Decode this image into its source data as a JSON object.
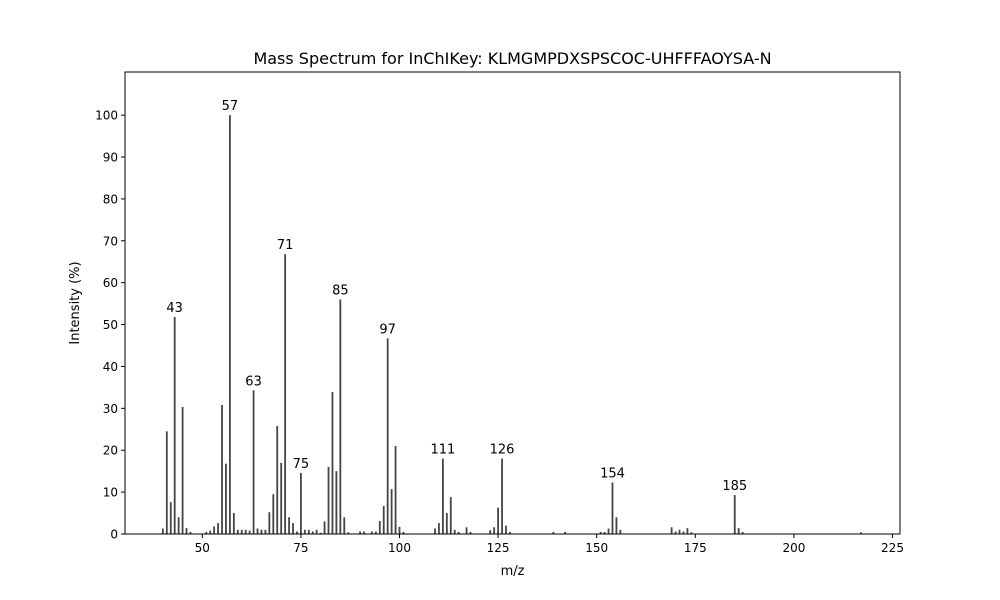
{
  "chart_data": {
    "type": "bar",
    "title": "Mass Spectrum for InChIKey: KLMGMPDXSPSCOC-UHFFFAOYSA-N",
    "xlabel": "m/z",
    "ylabel": "Intensity (%)",
    "xlim": [
      30.4,
      226.9
    ],
    "ylim": [
      0,
      110.3
    ],
    "xticks": [
      50,
      75,
      100,
      125,
      150,
      175,
      200,
      225
    ],
    "yticks": [
      0,
      10,
      20,
      30,
      40,
      50,
      60,
      70,
      80,
      90,
      100
    ],
    "grid": false,
    "bar_color": "#444444",
    "peaks": [
      [
        40,
        1.3
      ],
      [
        41,
        24.5
      ],
      [
        42,
        7.6
      ],
      [
        43,
        51.8
      ],
      [
        44,
        4
      ],
      [
        45,
        30.3
      ],
      [
        46,
        1.4
      ],
      [
        47,
        0.5
      ],
      [
        51,
        0.5
      ],
      [
        52,
        0.8
      ],
      [
        53,
        1.8
      ],
      [
        54,
        2.6
      ],
      [
        55,
        30.8
      ],
      [
        56,
        16.8
      ],
      [
        57,
        100
      ],
      [
        58,
        5
      ],
      [
        59,
        1
      ],
      [
        60,
        1
      ],
      [
        61,
        1
      ],
      [
        62,
        0.8
      ],
      [
        63,
        34.3
      ],
      [
        64,
        1.3
      ],
      [
        65,
        1
      ],
      [
        66,
        1
      ],
      [
        67,
        5.2
      ],
      [
        68,
        9.5
      ],
      [
        69,
        25.8
      ],
      [
        70,
        17
      ],
      [
        71,
        66.8
      ],
      [
        72,
        4
      ],
      [
        73,
        2.6
      ],
      [
        74,
        0.6
      ],
      [
        75,
        14.6
      ],
      [
        76,
        1
      ],
      [
        77,
        1
      ],
      [
        78,
        0.6
      ],
      [
        79,
        1
      ],
      [
        80,
        0.3
      ],
      [
        81,
        3
      ],
      [
        82,
        16
      ],
      [
        83,
        33.9
      ],
      [
        84,
        15
      ],
      [
        85,
        56
      ],
      [
        86,
        4
      ],
      [
        87,
        0.4
      ],
      [
        90,
        0.6
      ],
      [
        91,
        0.6
      ],
      [
        93,
        0.6
      ],
      [
        94,
        0.6
      ],
      [
        95,
        3.1
      ],
      [
        96,
        6.7
      ],
      [
        97,
        46.7
      ],
      [
        98,
        10.7
      ],
      [
        99,
        21
      ],
      [
        100,
        1.7
      ],
      [
        101,
        0.5
      ],
      [
        109,
        1.3
      ],
      [
        110,
        2.6
      ],
      [
        111,
        18
      ],
      [
        112,
        5
      ],
      [
        113,
        8.8
      ],
      [
        114,
        1
      ],
      [
        115,
        0.5
      ],
      [
        117,
        1.6
      ],
      [
        118,
        0.5
      ],
      [
        123,
        0.9
      ],
      [
        124,
        1.6
      ],
      [
        125,
        6.3
      ],
      [
        126,
        18
      ],
      [
        127,
        2
      ],
      [
        128,
        0.5
      ],
      [
        139,
        0.5
      ],
      [
        142,
        0.5
      ],
      [
        151,
        0.5
      ],
      [
        152,
        0.5
      ],
      [
        153,
        1.3
      ],
      [
        154,
        12.3
      ],
      [
        155,
        4
      ],
      [
        156,
        1
      ],
      [
        169,
        1.6
      ],
      [
        170,
        0.6
      ],
      [
        171,
        1
      ],
      [
        172,
        0.6
      ],
      [
        173,
        1.4
      ],
      [
        174,
        0.4
      ],
      [
        185,
        9.3
      ],
      [
        186,
        1.4
      ],
      [
        187,
        0.5
      ],
      [
        217,
        0.4
      ]
    ],
    "peak_labels": [
      "43",
      "57",
      "63",
      "71",
      "75",
      "85",
      "97",
      "111",
      "126",
      "154",
      "185"
    ]
  }
}
